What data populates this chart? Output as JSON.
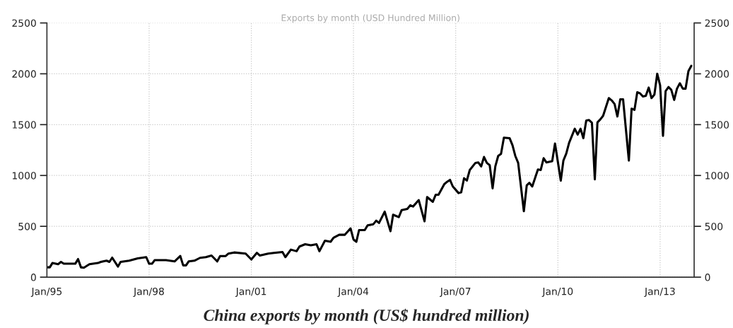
{
  "chart_data": {
    "type": "line",
    "title": "Exports by month (USD Hundred Million)",
    "annotations": [
      "China exports by month (US$ hundred million)"
    ],
    "x": [
      "1995-01",
      "1995-02",
      "1995-03",
      "1995-05",
      "1995-06",
      "1995-07",
      "1995-11",
      "1995-12",
      "1996-01",
      "1996-02",
      "1996-04",
      "1996-07",
      "1996-08",
      "1996-10",
      "1996-11",
      "1996-12",
      "1997-02",
      "1997-03",
      "1997-06",
      "1997-09",
      "1997-12",
      "1998-01",
      "1998-02",
      "1998-03",
      "1998-07",
      "1998-10",
      "1998-12",
      "1999-01",
      "1999-02",
      "1999-03",
      "1999-05",
      "1999-07",
      "1999-09",
      "1999-11",
      "2000-01",
      "2000-02",
      "2000-04",
      "2000-05",
      "2000-07",
      "2000-11",
      "2001-01",
      "2001-03",
      "2001-04",
      "2001-07",
      "2001-09",
      "2001-12",
      "2002-01",
      "2002-03",
      "2002-05",
      "2002-06",
      "2002-08",
      "2002-10",
      "2002-12",
      "2003-01",
      "2003-03",
      "2003-05",
      "2003-06",
      "2003-08",
      "2003-10",
      "2003-12",
      "2004-01",
      "2004-02",
      "2004-03",
      "2004-05",
      "2004-06",
      "2004-08",
      "2004-09",
      "2004-10",
      "2004-12",
      "2005-02",
      "2005-03",
      "2005-05",
      "2005-06",
      "2005-08",
      "2005-09",
      "2005-10",
      "2005-12",
      "2006-02",
      "2006-03",
      "2006-05",
      "2006-06",
      "2006-07",
      "2006-09",
      "2006-10",
      "2006-11",
      "2006-12",
      "2007-02",
      "2007-03",
      "2007-04",
      "2007-05",
      "2007-06",
      "2007-08",
      "2007-09",
      "2007-10",
      "2007-11",
      "2007-12",
      "2008-01",
      "2008-02",
      "2008-03",
      "2008-04",
      "2008-05",
      "2008-06",
      "2008-08",
      "2008-09",
      "2008-10",
      "2008-11",
      "2009-01",
      "2009-02",
      "2009-03",
      "2009-04",
      "2009-06",
      "2009-07",
      "2009-08",
      "2009-09",
      "2009-11",
      "2009-12",
      "2010-02",
      "2010-03",
      "2010-04",
      "2010-05",
      "2010-07",
      "2010-08",
      "2010-09",
      "2010-10",
      "2010-11",
      "2010-12",
      "2011-01",
      "2011-02",
      "2011-03",
      "2011-04",
      "2011-05",
      "2011-07",
      "2011-08",
      "2011-09",
      "2011-10",
      "2011-11",
      "2011-12",
      "2012-02",
      "2012-03",
      "2012-04",
      "2012-05",
      "2012-06",
      "2012-07",
      "2012-08",
      "2012-09",
      "2012-10",
      "2012-11",
      "2012-12",
      "2013-01",
      "2013-02",
      "2013-03",
      "2013-04",
      "2013-05",
      "2013-06",
      "2013-07",
      "2013-08",
      "2013-09",
      "2013-10",
      "2013-11",
      "2013-12"
    ],
    "series": [
      {
        "color": "#000000",
        "values": [
          97,
          97,
          139,
          127,
          150,
          132,
          132,
          178,
          97,
          93,
          127,
          139,
          150,
          162,
          150,
          192,
          104,
          150,
          162,
          185,
          197,
          132,
          132,
          167,
          167,
          155,
          208,
          116,
          116,
          155,
          162,
          190,
          197,
          213,
          155,
          208,
          208,
          232,
          243,
          232,
          174,
          239,
          213,
          232,
          239,
          248,
          197,
          271,
          255,
          301,
          324,
          313,
          324,
          255,
          359,
          348,
          387,
          417,
          417,
          480,
          371,
          348,
          463,
          463,
          510,
          521,
          556,
          533,
          644,
          452,
          614,
          591,
          660,
          672,
          707,
          695,
          758,
          549,
          788,
          741,
          811,
          811,
          915,
          938,
          957,
          892,
          827,
          834,
          973,
          950,
          1054,
          1124,
          1128,
          1089,
          1182,
          1124,
          1101,
          874,
          1089,
          1193,
          1212,
          1372,
          1367,
          1298,
          1193,
          1124,
          649,
          904,
          927,
          892,
          1059,
          1054,
          1170,
          1128,
          1140,
          1314,
          950,
          1147,
          1216,
          1321,
          1460,
          1402,
          1460,
          1367,
          1541,
          1545,
          1518,
          962,
          1522,
          1552,
          1587,
          1761,
          1738,
          1703,
          1580,
          1749,
          1749,
          1147,
          1657,
          1645,
          1819,
          1807,
          1777,
          1784,
          1865,
          1761,
          1796,
          2000,
          1888,
          1390,
          1830,
          1870,
          1842,
          1743,
          1854,
          1907,
          1854,
          1854,
          2027,
          2078
        ]
      }
    ],
    "xlim": [
      "1995-01",
      "2014-01"
    ],
    "xticks": [
      {
        "value": "1995-01",
        "label": "Jan/95"
      },
      {
        "value": "1998-01",
        "label": "Jan/98"
      },
      {
        "value": "2001-01",
        "label": "Jan/01"
      },
      {
        "value": "2004-01",
        "label": "Jan/04"
      },
      {
        "value": "2007-01",
        "label": "Jan/07"
      },
      {
        "value": "2010-01",
        "label": "Jan/10"
      },
      {
        "value": "2013-01",
        "label": "Jan/13"
      }
    ],
    "ylim": [
      0,
      2500
    ],
    "yticks": [
      0,
      500,
      1000,
      1500,
      2000,
      2500
    ],
    "y2lim": [
      0,
      2500
    ],
    "y2ticks": [
      0,
      500,
      1000,
      1500,
      2000,
      2500
    ],
    "grid": true,
    "legend": false,
    "marker": "none",
    "line_style": "solid"
  }
}
